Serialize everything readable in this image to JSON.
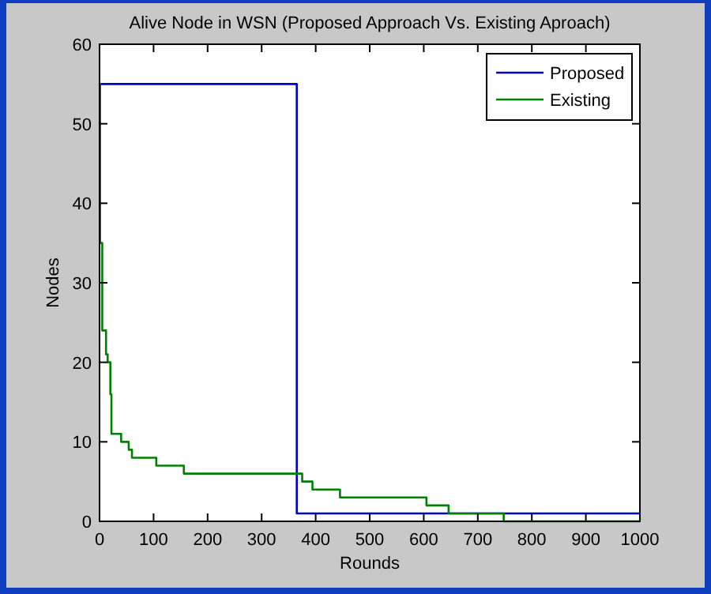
{
  "chart_data": {
    "type": "step",
    "title": "Alive Node in WSN (Proposed Approach Vs. Existing Aproach)",
    "xlabel": "Rounds",
    "ylabel": "Nodes",
    "xlim": [
      0,
      1000
    ],
    "xticks": [
      0,
      100,
      200,
      300,
      400,
      500,
      600,
      700,
      800,
      900,
      1000
    ],
    "ylim": [
      0,
      60
    ],
    "yticks": [
      0,
      10,
      20,
      30,
      40,
      50,
      60
    ],
    "series": [
      {
        "name": "Proposed",
        "color": "#0000c0",
        "x": [
          0,
          365,
          1000
        ],
        "values": [
          55,
          1,
          1
        ]
      },
      {
        "name": "Existing",
        "color": "#008000",
        "x": [
          0,
          1,
          5,
          12,
          15,
          20,
          22,
          40,
          54,
          60,
          105,
          156,
          375,
          394,
          445,
          605,
          646,
          748,
          1000
        ],
        "values": [
          55,
          35,
          24,
          21,
          20,
          16,
          11,
          10,
          9,
          8,
          7,
          6,
          5,
          4,
          3,
          2,
          1,
          0,
          0
        ]
      }
    ],
    "grid": false,
    "legend": "top right",
    "line_style": "solid",
    "marker": "none"
  }
}
